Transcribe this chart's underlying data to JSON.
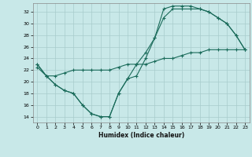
{
  "title": "",
  "xlabel": "Humidex (Indice chaleur)",
  "ylabel": "",
  "bg_color": "#c8e8e8",
  "line_color": "#1a6b5a",
  "grid_color": "#a8cccc",
  "xlim": [
    -0.5,
    23.5
  ],
  "ylim": [
    13,
    33.5
  ],
  "xticks": [
    0,
    1,
    2,
    3,
    4,
    5,
    6,
    7,
    8,
    9,
    10,
    11,
    12,
    13,
    14,
    15,
    16,
    17,
    18,
    19,
    20,
    21,
    22,
    23
  ],
  "yticks": [
    14,
    16,
    18,
    20,
    22,
    24,
    26,
    28,
    30,
    32
  ],
  "line1": {
    "x": [
      0,
      1,
      2,
      3,
      4,
      5,
      6,
      7,
      8,
      9,
      10,
      11,
      12,
      13,
      14,
      15,
      16,
      17,
      18,
      19,
      20,
      21,
      22,
      23
    ],
    "y": [
      23,
      21,
      19.5,
      18.5,
      18,
      16,
      14.5,
      14,
      14,
      18,
      20.5,
      21,
      24,
      27.5,
      31,
      32.5,
      32.5,
      32.5,
      32.5,
      32,
      31,
      30,
      28,
      25.5
    ]
  },
  "line2": {
    "x": [
      0,
      1,
      2,
      3,
      4,
      5,
      6,
      7,
      8,
      9,
      10,
      11,
      12,
      13,
      14,
      15,
      16,
      17,
      18,
      19,
      20,
      21,
      22,
      23
    ],
    "y": [
      23,
      21,
      19.5,
      18.5,
      18,
      16,
      14.5,
      14,
      14,
      18,
      20.5,
      23,
      25,
      27.5,
      32.5,
      33,
      33,
      33,
      32.5,
      32,
      31,
      30,
      28,
      25.5
    ]
  },
  "line3": {
    "x": [
      0,
      1,
      2,
      3,
      4,
      5,
      6,
      7,
      8,
      9,
      10,
      11,
      12,
      13,
      14,
      15,
      16,
      17,
      18,
      19,
      20,
      21,
      22,
      23
    ],
    "y": [
      22.5,
      21,
      21,
      21.5,
      22,
      22,
      22,
      22,
      22,
      22.5,
      23,
      23,
      23,
      23.5,
      24,
      24,
      24.5,
      25,
      25,
      25.5,
      25.5,
      25.5,
      25.5,
      25.5
    ]
  }
}
